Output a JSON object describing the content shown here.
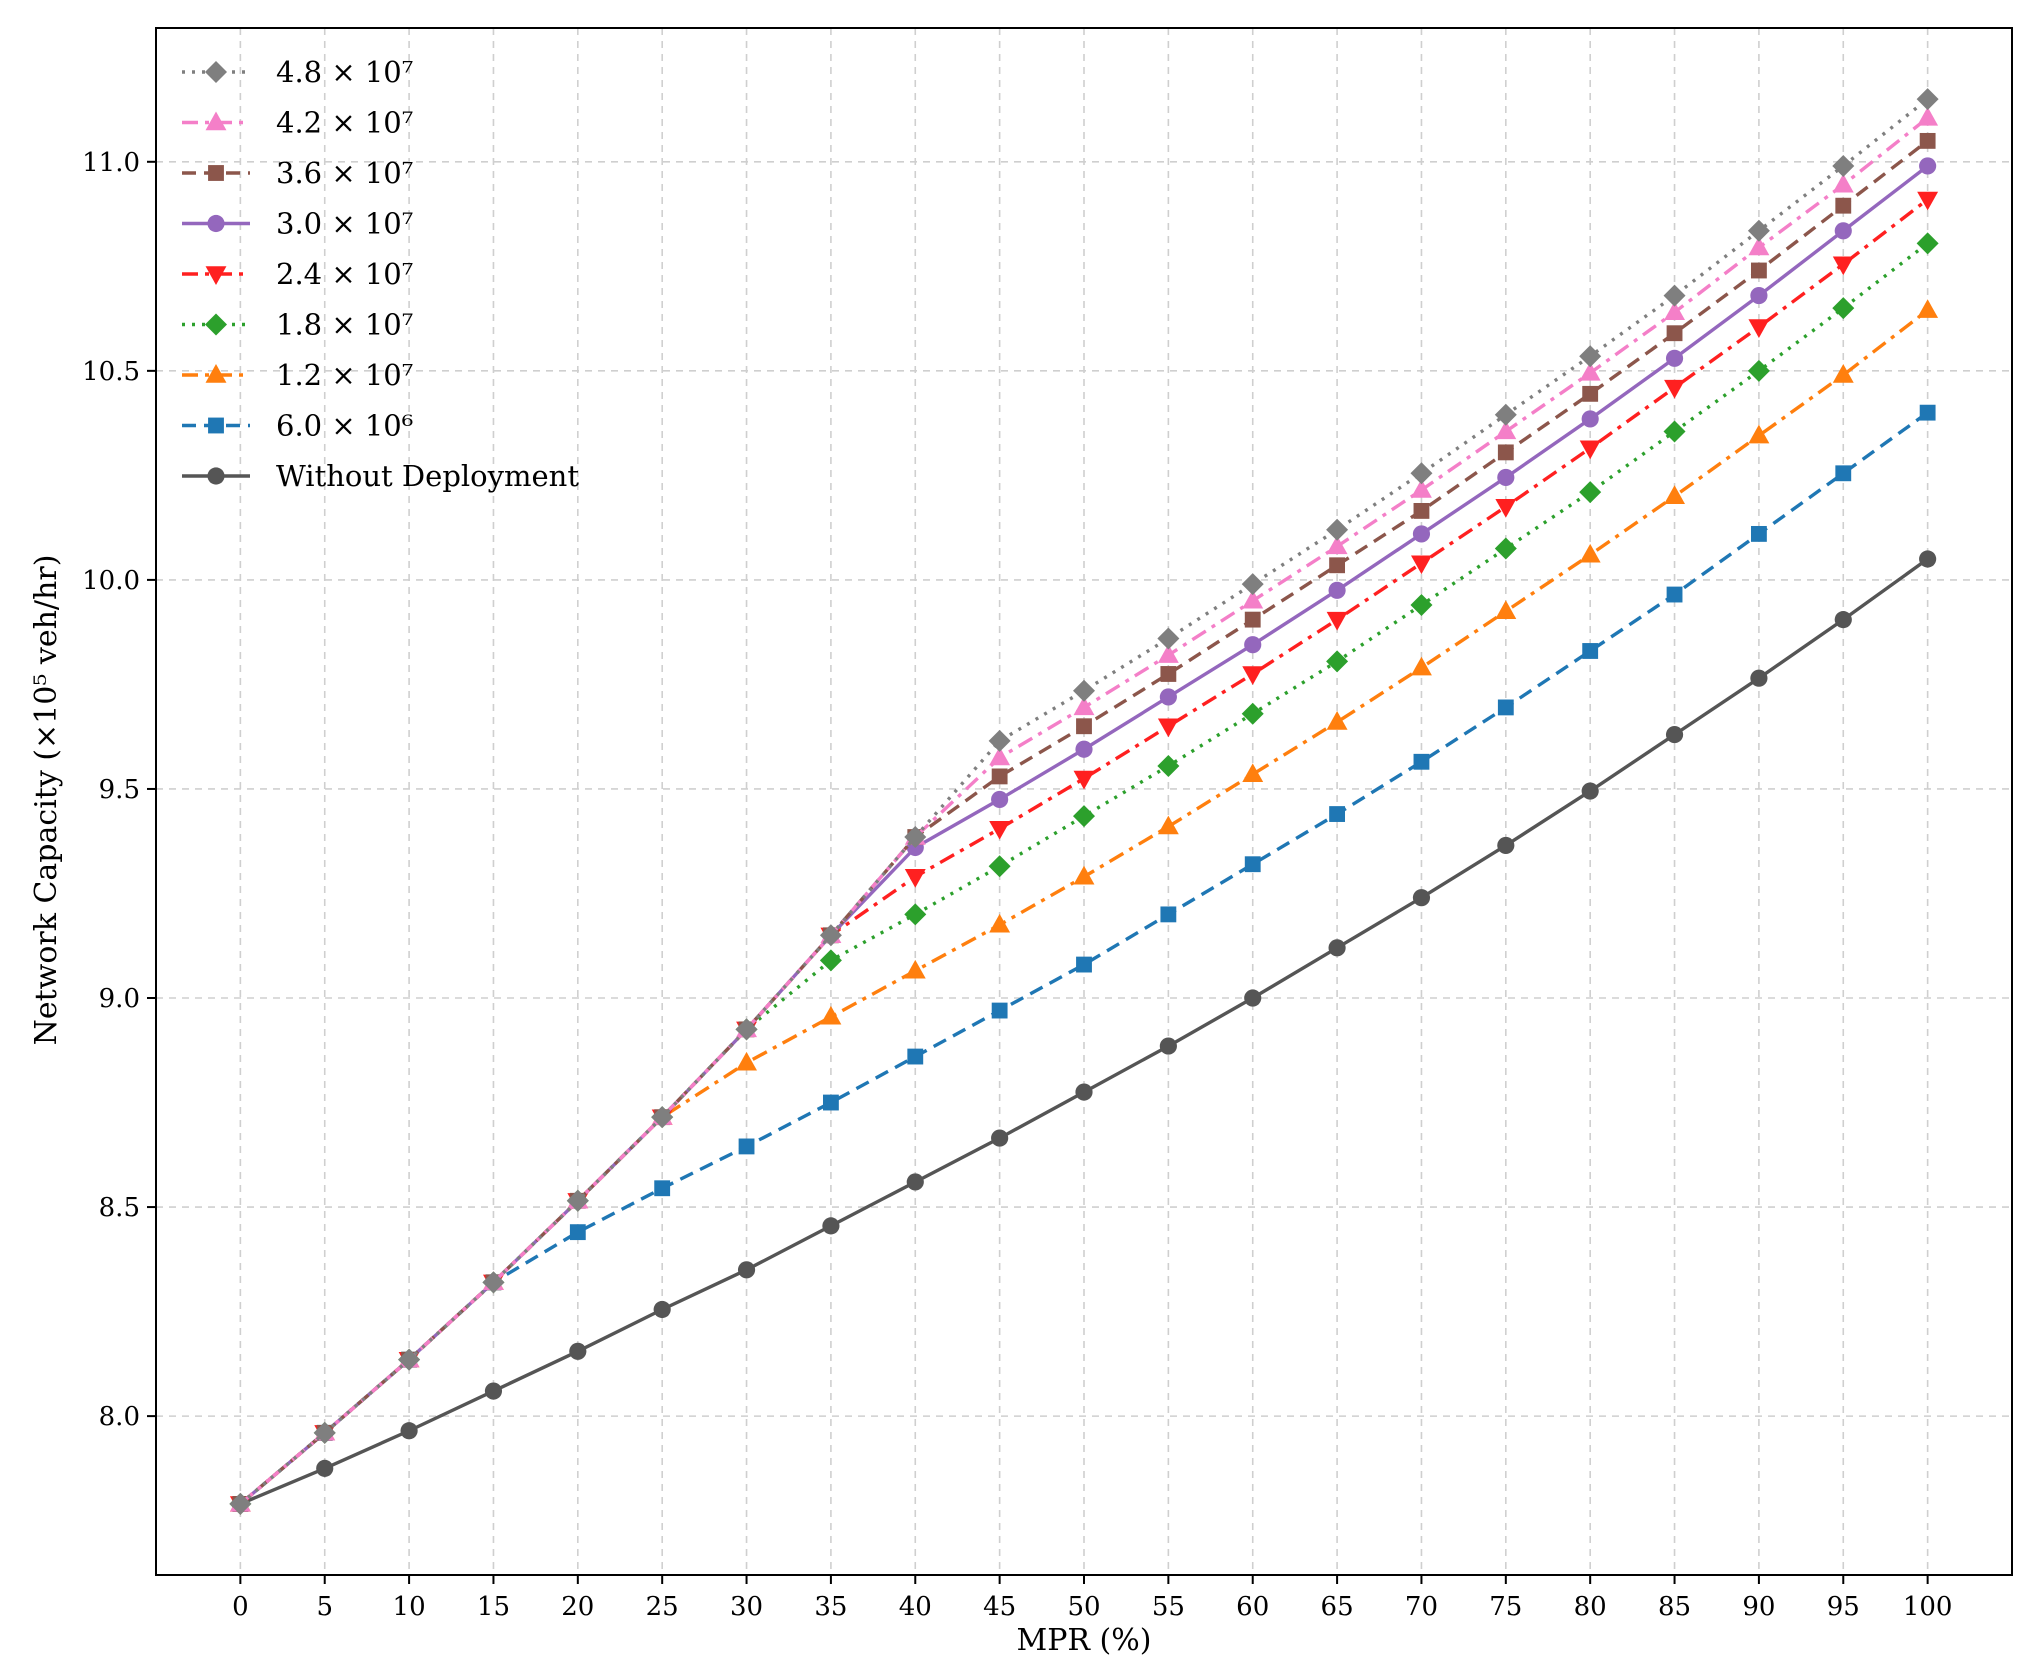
{
  "chart_data": {
    "type": "line",
    "title": "",
    "xlabel": "MPR (%)",
    "ylabel": "Network Capacity (×10⁵ veh/hr)",
    "x": [
      0,
      5,
      10,
      15,
      20,
      25,
      30,
      35,
      40,
      45,
      50,
      55,
      60,
      65,
      70,
      75,
      80,
      85,
      90,
      95,
      100
    ],
    "x_tick_labels": [
      "0",
      "5",
      "10",
      "15",
      "20",
      "25",
      "30",
      "35",
      "40",
      "45",
      "50",
      "55",
      "60",
      "65",
      "70",
      "75",
      "80",
      "85",
      "90",
      "95",
      "100"
    ],
    "y_ticks": [
      8.0,
      8.5,
      9.0,
      9.5,
      10.0,
      10.5,
      11.0
    ],
    "y_tick_labels": [
      "8.0",
      "8.5",
      "9.0",
      "9.5",
      "10.0",
      "10.5",
      "11.0"
    ],
    "xlim": [
      -5,
      105
    ],
    "ylim": [
      7.62,
      11.32
    ],
    "grid": true,
    "legend_position": "top-left",
    "series": [
      {
        "name": "4.8 × 10⁷",
        "color": "#7f7f7f",
        "dash": "dotted",
        "marker": "diamond",
        "values": [
          7.79,
          7.96,
          8.135,
          8.32,
          8.515,
          8.715,
          8.925,
          9.15,
          9.385,
          9.615,
          9.735,
          9.86,
          9.99,
          10.12,
          10.255,
          10.395,
          10.535,
          10.68,
          10.835,
          10.99,
          11.15
        ]
      },
      {
        "name": "4.2 × 10⁷",
        "color": "#f47fc8",
        "dash": "dashdot",
        "marker": "triangle-up",
        "values": [
          7.79,
          7.96,
          8.135,
          8.32,
          8.515,
          8.715,
          8.925,
          9.15,
          9.385,
          9.575,
          9.695,
          9.82,
          9.95,
          10.08,
          10.215,
          10.355,
          10.495,
          10.64,
          10.795,
          10.945,
          11.105
        ]
      },
      {
        "name": "3.6 × 10⁷",
        "color": "#8c564b",
        "dash": "dashed",
        "marker": "square",
        "values": [
          7.79,
          7.96,
          8.135,
          8.32,
          8.515,
          8.715,
          8.925,
          9.15,
          9.385,
          9.53,
          9.65,
          9.775,
          9.905,
          10.035,
          10.165,
          10.305,
          10.445,
          10.59,
          10.74,
          10.895,
          11.05
        ]
      },
      {
        "name": "3.0 × 10⁷",
        "color": "#9467bd",
        "dash": "solid",
        "marker": "circle",
        "values": [
          7.79,
          7.96,
          8.135,
          8.32,
          8.515,
          8.715,
          8.925,
          9.15,
          9.36,
          9.475,
          9.595,
          9.72,
          9.845,
          9.975,
          10.11,
          10.245,
          10.385,
          10.53,
          10.68,
          10.835,
          10.99
        ]
      },
      {
        "name": "2.4 × 10⁷",
        "color": "#ff2020",
        "dash": "dashdot",
        "marker": "triangle-down",
        "values": [
          7.79,
          7.96,
          8.135,
          8.32,
          8.515,
          8.715,
          8.925,
          9.15,
          9.29,
          9.405,
          9.525,
          9.65,
          9.775,
          9.905,
          10.04,
          10.175,
          10.315,
          10.46,
          10.605,
          10.755,
          10.91
        ]
      },
      {
        "name": "1.8 × 10⁷",
        "color": "#2ca02c",
        "dash": "dotted",
        "marker": "diamond",
        "values": [
          7.79,
          7.96,
          8.135,
          8.32,
          8.515,
          8.715,
          8.925,
          9.09,
          9.2,
          9.315,
          9.435,
          9.555,
          9.68,
          9.805,
          9.94,
          10.075,
          10.21,
          10.355,
          10.5,
          10.65,
          10.805
        ]
      },
      {
        "name": "1.2 × 10⁷",
        "color": "#ff7f0e",
        "dash": "dashdot",
        "marker": "triangle-up",
        "values": [
          7.79,
          7.96,
          8.135,
          8.32,
          8.515,
          8.715,
          8.845,
          8.955,
          9.065,
          9.175,
          9.29,
          9.41,
          9.535,
          9.66,
          9.79,
          9.925,
          10.06,
          10.2,
          10.345,
          10.49,
          10.645
        ]
      },
      {
        "name": "6.0 × 10⁶",
        "color": "#1f77b4",
        "dash": "dashed",
        "marker": "square",
        "values": [
          7.79,
          7.96,
          8.135,
          8.32,
          8.44,
          8.545,
          8.645,
          8.75,
          8.86,
          8.97,
          9.08,
          9.2,
          9.32,
          9.44,
          9.565,
          9.695,
          9.83,
          9.965,
          10.11,
          10.255,
          10.4
        ]
      },
      {
        "name": "Without Deployment",
        "color": "#555555",
        "dash": "solid",
        "marker": "circle",
        "values": [
          7.79,
          7.875,
          7.965,
          8.06,
          8.155,
          8.255,
          8.35,
          8.455,
          8.56,
          8.665,
          8.775,
          8.885,
          9.0,
          9.12,
          9.24,
          9.365,
          9.495,
          9.63,
          9.765,
          9.905,
          10.05
        ]
      }
    ]
  }
}
